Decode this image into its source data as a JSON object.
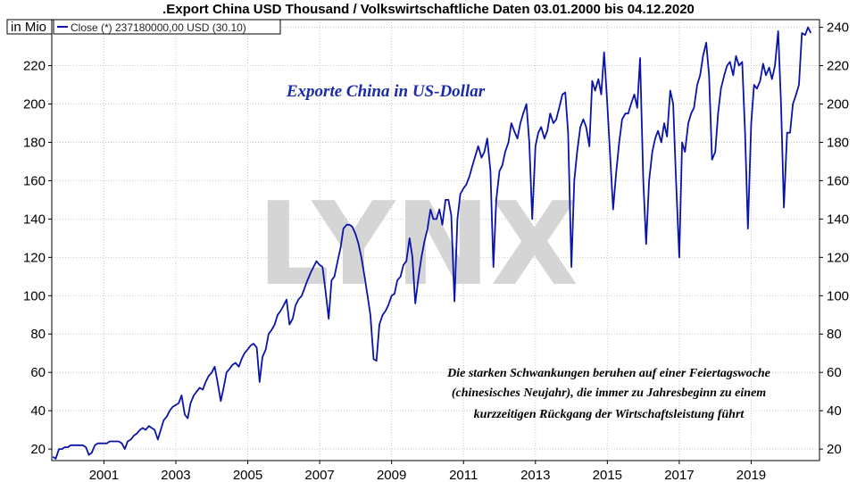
{
  "chart_data": {
    "type": "line",
    "title": ".Export China USD Thousand / Volkswirtschaftliche Daten 03.01.2000 bis 04.12.2020",
    "unit_label": "in Mio",
    "legend": {
      "text": "Close (*) 237180000,00 USD (30.10)",
      "placement": "top-left"
    },
    "watermark": "LYNX",
    "annotation_title": "Exporte China in US-Dollar",
    "annotation_note": [
      "Die starken Schwankungen beruhen auf einer Feiertagswoche",
      "(chinesisches Neujahr), die immer zu Jahresbeginn zu einem",
      "kurzzeitigen Rückgang der Wirtschaftsleistung führt"
    ],
    "x_ticks": [
      "2001",
      "2003",
      "2005",
      "2007",
      "2009",
      "2011",
      "2013",
      "2015",
      "2017",
      "2019"
    ],
    "y_ticks": [
      20,
      40,
      60,
      80,
      100,
      120,
      140,
      160,
      180,
      200,
      220,
      240
    ],
    "xlim": [
      1999.55,
      2020.9
    ],
    "ylim": [
      14,
      244
    ],
    "grid": true,
    "series": [
      {
        "color": "#0a14a8",
        "points": [
          [
            1999.58,
            16
          ],
          [
            1999.66,
            15
          ],
          [
            1999.75,
            20
          ],
          [
            1999.83,
            20
          ],
          [
            1999.91,
            21
          ],
          [
            2000.0,
            21
          ],
          [
            2000.08,
            22
          ],
          [
            2000.16,
            22
          ],
          [
            2000.25,
            22
          ],
          [
            2000.33,
            22
          ],
          [
            2000.41,
            22
          ],
          [
            2000.5,
            21
          ],
          [
            2000.58,
            17
          ],
          [
            2000.66,
            18
          ],
          [
            2000.75,
            22
          ],
          [
            2000.83,
            23
          ],
          [
            2000.91,
            23
          ],
          [
            2001.0,
            23
          ],
          [
            2001.08,
            23
          ],
          [
            2001.16,
            24
          ],
          [
            2001.25,
            24
          ],
          [
            2001.33,
            24
          ],
          [
            2001.41,
            24
          ],
          [
            2001.5,
            23
          ],
          [
            2001.58,
            20
          ],
          [
            2001.66,
            24
          ],
          [
            2001.75,
            25
          ],
          [
            2001.83,
            27
          ],
          [
            2001.91,
            28
          ],
          [
            2002.0,
            30
          ],
          [
            2002.08,
            31
          ],
          [
            2002.16,
            30
          ],
          [
            2002.25,
            32
          ],
          [
            2002.33,
            31
          ],
          [
            2002.41,
            30
          ],
          [
            2002.5,
            25
          ],
          [
            2002.58,
            30
          ],
          [
            2002.66,
            35
          ],
          [
            2002.75,
            37
          ],
          [
            2002.83,
            40
          ],
          [
            2002.91,
            42
          ],
          [
            2003.0,
            43
          ],
          [
            2003.08,
            44
          ],
          [
            2003.16,
            48
          ],
          [
            2003.25,
            38
          ],
          [
            2003.33,
            36
          ],
          [
            2003.41,
            44
          ],
          [
            2003.5,
            48
          ],
          [
            2003.58,
            50
          ],
          [
            2003.66,
            52
          ],
          [
            2003.75,
            51
          ],
          [
            2003.83,
            55
          ],
          [
            2003.91,
            58
          ],
          [
            2004.0,
            60
          ],
          [
            2004.08,
            63
          ],
          [
            2004.16,
            55
          ],
          [
            2004.25,
            45
          ],
          [
            2004.33,
            52
          ],
          [
            2004.41,
            60
          ],
          [
            2004.5,
            62
          ],
          [
            2004.58,
            64
          ],
          [
            2004.66,
            65
          ],
          [
            2004.75,
            63
          ],
          [
            2004.83,
            67
          ],
          [
            2004.91,
            70
          ],
          [
            2005.0,
            72
          ],
          [
            2005.08,
            74
          ],
          [
            2005.16,
            75
          ],
          [
            2005.25,
            73
          ],
          [
            2005.33,
            55
          ],
          [
            2005.41,
            68
          ],
          [
            2005.5,
            72
          ],
          [
            2005.58,
            80
          ],
          [
            2005.66,
            82
          ],
          [
            2005.75,
            85
          ],
          [
            2005.83,
            90
          ],
          [
            2005.91,
            92
          ],
          [
            2006.0,
            95
          ],
          [
            2006.08,
            98
          ],
          [
            2006.16,
            85
          ],
          [
            2006.25,
            88
          ],
          [
            2006.33,
            95
          ],
          [
            2006.41,
            98
          ],
          [
            2006.5,
            100
          ],
          [
            2006.58,
            104
          ],
          [
            2006.66,
            108
          ],
          [
            2006.75,
            112
          ],
          [
            2006.83,
            115
          ],
          [
            2006.91,
            118
          ],
          [
            2007.0,
            116
          ],
          [
            2007.08,
            115
          ],
          [
            2007.16,
            103
          ],
          [
            2007.25,
            88
          ],
          [
            2007.33,
            108
          ],
          [
            2007.41,
            110
          ],
          [
            2007.5,
            118
          ],
          [
            2007.58,
            125
          ],
          [
            2007.66,
            135
          ],
          [
            2007.75,
            137
          ],
          [
            2007.83,
            137
          ],
          [
            2007.91,
            136
          ],
          [
            2008.0,
            132
          ],
          [
            2008.08,
            127
          ],
          [
            2008.16,
            120
          ],
          [
            2008.25,
            110
          ],
          [
            2008.33,
            100
          ],
          [
            2008.41,
            90
          ],
          [
            2008.5,
            67
          ],
          [
            2008.58,
            66
          ],
          [
            2008.66,
            85
          ],
          [
            2008.75,
            90
          ],
          [
            2008.83,
            92
          ],
          [
            2008.91,
            95
          ],
          [
            2009.0,
            100
          ],
          [
            2009.08,
            101
          ],
          [
            2009.16,
            108
          ],
          [
            2009.25,
            110
          ],
          [
            2009.33,
            116
          ],
          [
            2009.41,
            118
          ],
          [
            2009.5,
            130
          ],
          [
            2009.58,
            120
          ],
          [
            2009.66,
            96
          ],
          [
            2009.75,
            110
          ],
          [
            2009.83,
            120
          ],
          [
            2009.91,
            128
          ],
          [
            2010.0,
            135
          ],
          [
            2010.08,
            145
          ],
          [
            2010.16,
            140
          ],
          [
            2010.25,
            140
          ],
          [
            2010.33,
            145
          ],
          [
            2010.41,
            137
          ],
          [
            2010.5,
            150
          ],
          [
            2010.58,
            150
          ],
          [
            2010.66,
            142
          ],
          [
            2010.75,
            97
          ],
          [
            2010.83,
            140
          ],
          [
            2010.91,
            153
          ],
          [
            2011.0,
            156
          ],
          [
            2011.08,
            158
          ],
          [
            2011.16,
            162
          ],
          [
            2011.25,
            168
          ],
          [
            2011.33,
            173
          ],
          [
            2011.41,
            178
          ],
          [
            2011.5,
            172
          ],
          [
            2011.58,
            175
          ],
          [
            2011.66,
            182
          ],
          [
            2011.75,
            165
          ],
          [
            2011.83,
            115
          ],
          [
            2011.91,
            150
          ],
          [
            2012.0,
            165
          ],
          [
            2012.08,
            168
          ],
          [
            2012.16,
            175
          ],
          [
            2012.25,
            180
          ],
          [
            2012.33,
            190
          ],
          [
            2012.41,
            186
          ],
          [
            2012.5,
            182
          ],
          [
            2012.58,
            190
          ],
          [
            2012.66,
            195
          ],
          [
            2012.75,
            200
          ],
          [
            2012.83,
            180
          ],
          [
            2012.91,
            140
          ],
          [
            2013.0,
            178
          ],
          [
            2013.08,
            185
          ],
          [
            2013.16,
            188
          ],
          [
            2013.25,
            182
          ],
          [
            2013.33,
            186
          ],
          [
            2013.41,
            195
          ],
          [
            2013.5,
            190
          ],
          [
            2013.58,
            192
          ],
          [
            2013.66,
            198
          ],
          [
            2013.75,
            205
          ],
          [
            2013.83,
            206
          ],
          [
            2013.91,
            185
          ],
          [
            2014.0,
            115
          ],
          [
            2014.08,
            160
          ],
          [
            2014.16,
            175
          ],
          [
            2014.25,
            188
          ],
          [
            2014.33,
            192
          ],
          [
            2014.41,
            188
          ],
          [
            2014.5,
            178
          ],
          [
            2014.58,
            212
          ],
          [
            2014.66,
            207
          ],
          [
            2014.75,
            213
          ],
          [
            2014.83,
            205
          ],
          [
            2014.91,
            227
          ],
          [
            2015.0,
            200
          ],
          [
            2015.08,
            172
          ],
          [
            2015.16,
            145
          ],
          [
            2015.25,
            165
          ],
          [
            2015.33,
            180
          ],
          [
            2015.41,
            192
          ],
          [
            2015.5,
            195
          ],
          [
            2015.58,
            195
          ],
          [
            2015.66,
            200
          ],
          [
            2015.75,
            205
          ],
          [
            2015.83,
            198
          ],
          [
            2015.91,
            224
          ],
          [
            2016.0,
            160
          ],
          [
            2016.08,
            127
          ],
          [
            2016.16,
            160
          ],
          [
            2016.25,
            175
          ],
          [
            2016.33,
            182
          ],
          [
            2016.41,
            186
          ],
          [
            2016.5,
            180
          ],
          [
            2016.58,
            190
          ],
          [
            2016.66,
            183
          ],
          [
            2016.75,
            207
          ],
          [
            2016.83,
            200
          ],
          [
            2016.91,
            160
          ],
          [
            2017.0,
            120
          ],
          [
            2017.08,
            180
          ],
          [
            2017.16,
            175
          ],
          [
            2017.25,
            190
          ],
          [
            2017.33,
            195
          ],
          [
            2017.41,
            198
          ],
          [
            2017.5,
            210
          ],
          [
            2017.58,
            215
          ],
          [
            2017.66,
            225
          ],
          [
            2017.75,
            232
          ],
          [
            2017.83,
            215
          ],
          [
            2017.91,
            171
          ],
          [
            2018.0,
            175
          ],
          [
            2018.08,
            195
          ],
          [
            2018.16,
            208
          ],
          [
            2018.25,
            215
          ],
          [
            2018.33,
            220
          ],
          [
            2018.41,
            222
          ],
          [
            2018.5,
            215
          ],
          [
            2018.58,
            225
          ],
          [
            2018.66,
            220
          ],
          [
            2018.75,
            222
          ],
          [
            2018.83,
            185
          ],
          [
            2018.91,
            135
          ],
          [
            2019.0,
            190
          ],
          [
            2019.08,
            210
          ],
          [
            2019.16,
            208
          ],
          [
            2019.25,
            212
          ],
          [
            2019.33,
            221
          ],
          [
            2019.41,
            215
          ],
          [
            2019.5,
            219
          ],
          [
            2019.58,
            213
          ],
          [
            2019.66,
            220
          ],
          [
            2019.75,
            238
          ],
          [
            2019.83,
            200
          ],
          [
            2019.91,
            146
          ],
          [
            2020.0,
            185
          ],
          [
            2020.08,
            185
          ],
          [
            2020.16,
            200
          ],
          [
            2020.25,
            205
          ],
          [
            2020.33,
            210
          ],
          [
            2020.41,
            237
          ],
          [
            2020.5,
            236
          ],
          [
            2020.58,
            240
          ],
          [
            2020.66,
            237
          ]
        ]
      }
    ]
  }
}
